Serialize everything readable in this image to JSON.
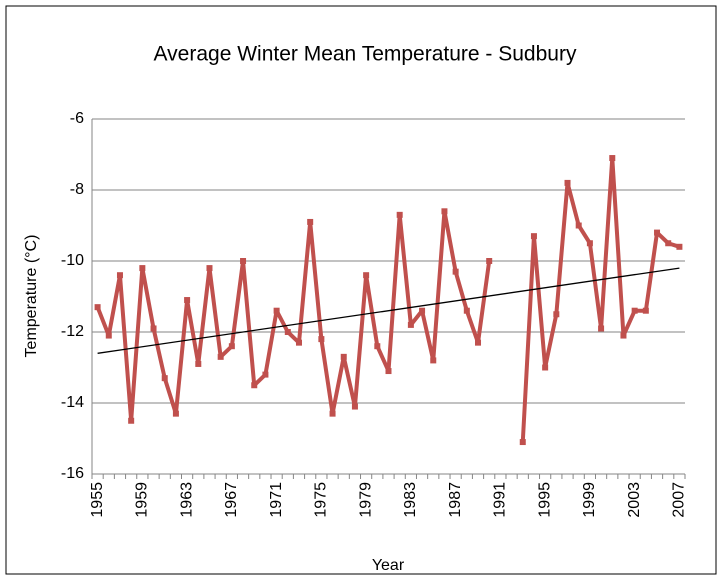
{
  "chart_data": {
    "type": "line",
    "title": "Average Winter Mean Temperature - Sudbury",
    "x_label": "Year",
    "y_label": "Temperature (°C)",
    "categories": [
      "1955",
      null,
      null,
      null,
      "1959",
      null,
      null,
      null,
      "1963",
      null,
      null,
      null,
      "1967",
      null,
      null,
      null,
      "1971",
      null,
      null,
      null,
      "1975",
      null,
      null,
      null,
      "1979",
      null,
      null,
      null,
      "1983",
      null,
      null,
      null,
      "1987",
      null,
      null,
      null,
      "1991",
      null,
      null,
      null,
      "1995",
      null,
      null,
      null,
      "1999",
      null,
      null,
      null,
      "2003",
      null,
      null,
      null,
      "2007"
    ],
    "series": [
      {
        "color": "#c0504d",
        "values": [
          -11.3,
          -12.1,
          -10.4,
          -14.5,
          -10.2,
          -11.9,
          -13.3,
          -14.3,
          -11.1,
          -12.9,
          -10.2,
          -12.7,
          -12.4,
          -10.0,
          -13.5,
          -13.2,
          -11.4,
          -12.0,
          -12.3,
          -8.9,
          -12.2,
          -14.3,
          -12.7,
          -14.1,
          -10.4,
          -12.4,
          -13.1,
          -8.7,
          -11.8,
          -11.4,
          -12.8,
          -8.6,
          -10.3,
          -11.4,
          -12.3,
          -10.0,
          null,
          null,
          -15.1,
          -9.3,
          -13.0,
          -11.5,
          -7.8,
          -9.0,
          -9.5,
          -11.9,
          -7.1,
          -12.1,
          -11.4,
          -11.4,
          -9.2,
          -9.5,
          -9.6
        ]
      }
    ],
    "trendline": {
      "color": "#000000",
      "values": [
        -12.6,
        -10.2
      ]
    },
    "ylim": [
      -16,
      -6
    ],
    "yticks": [
      -16,
      -14,
      -12,
      -10,
      -8,
      -6
    ],
    "grid": true
  }
}
